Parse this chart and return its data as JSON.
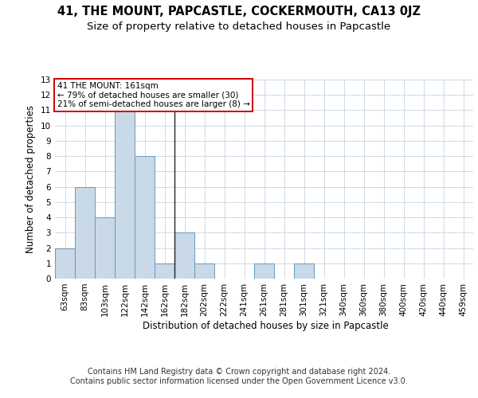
{
  "title": "41, THE MOUNT, PAPCASTLE, COCKERMOUTH, CA13 0JZ",
  "subtitle": "Size of property relative to detached houses in Papcastle",
  "xlabel": "Distribution of detached houses by size in Papcastle",
  "ylabel": "Number of detached properties",
  "categories": [
    "63sqm",
    "83sqm",
    "103sqm",
    "122sqm",
    "142sqm",
    "162sqm",
    "182sqm",
    "202sqm",
    "222sqm",
    "241sqm",
    "261sqm",
    "281sqm",
    "301sqm",
    "321sqm",
    "340sqm",
    "360sqm",
    "380sqm",
    "400sqm",
    "420sqm",
    "440sqm",
    "459sqm"
  ],
  "values": [
    2,
    6,
    4,
    11,
    8,
    1,
    3,
    1,
    0,
    0,
    1,
    0,
    1,
    0,
    0,
    0,
    0,
    0,
    0,
    0,
    0
  ],
  "bar_color": "#c9d9e8",
  "bar_edge_color": "#6899bb",
  "highlight_index": 5,
  "highlight_line_color": "#222222",
  "ylim": [
    0,
    13
  ],
  "yticks": [
    0,
    1,
    2,
    3,
    4,
    5,
    6,
    7,
    8,
    9,
    10,
    11,
    12,
    13
  ],
  "annotation_text": "41 THE MOUNT: 161sqm\n← 79% of detached houses are smaller (30)\n21% of semi-detached houses are larger (8) →",
  "annotation_box_color": "#ffffff",
  "annotation_box_edge": "#cc0000",
  "footer": "Contains HM Land Registry data © Crown copyright and database right 2024.\nContains public sector information licensed under the Open Government Licence v3.0.",
  "bg_color": "#ffffff",
  "grid_color": "#c8d4e0",
  "title_fontsize": 10.5,
  "subtitle_fontsize": 9.5,
  "axis_label_fontsize": 8.5,
  "tick_fontsize": 7.5,
  "footer_fontsize": 7
}
